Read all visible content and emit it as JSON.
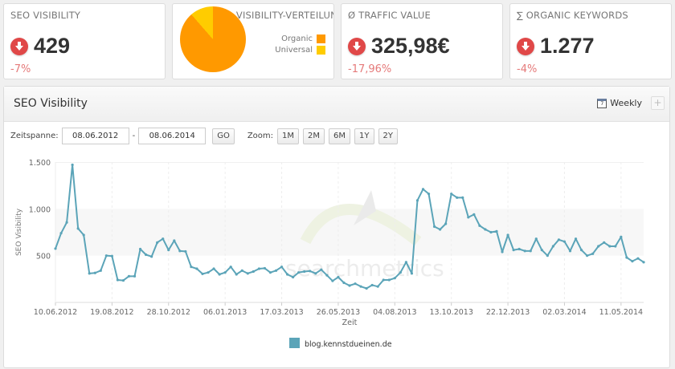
{
  "kpis": [
    {
      "title": "SEO VISIBILITY",
      "value": "429",
      "change": "-7%",
      "trend": "down"
    },
    {
      "title": "VISIBILITY-VERTEILUNG",
      "legend": [
        {
          "label": "Organic",
          "color": "#ff9900",
          "share": 0.885
        },
        {
          "label": "Universal",
          "color": "#ffcc00",
          "share": 0.115
        }
      ]
    },
    {
      "title": "Ø TRAFFIC VALUE",
      "value": "325,98€",
      "change": "-17,96%",
      "trend": "down"
    },
    {
      "title": "∑ ORGANIC KEYWORDS",
      "value": "1.277",
      "change": "-4%",
      "trend": "down"
    }
  ],
  "panel": {
    "title": "SEO Visibility",
    "interval_label": "Weekly",
    "calendar_day": "7",
    "add_label": "+"
  },
  "controls": {
    "timespan_label": "Zeitspanne:",
    "from_date": "08.06.2012",
    "separator": "-",
    "to_date": "08.06.2014",
    "go_label": "GO",
    "zoom_label": "Zoom:",
    "zoom_buttons": [
      "1M",
      "2M",
      "6M",
      "1Y",
      "2Y"
    ]
  },
  "colors": {
    "series": "#5ba4b8",
    "down": "#e04848",
    "change": "#e57a7a"
  },
  "watermark": "searchmetrics",
  "chart_data": {
    "type": "line",
    "title": "SEO Visibility",
    "xlabel": "Zeit",
    "ylabel": "SEO Visibility",
    "ylim": [
      0,
      1500
    ],
    "yticks": [
      "500",
      "1.000",
      "1.500"
    ],
    "xticks": [
      "10.06.2012",
      "19.08.2012",
      "28.10.2012",
      "06.01.2013",
      "17.03.2013",
      "26.05.2013",
      "04.08.2013",
      "13.10.2013",
      "22.12.2013",
      "02.03.2014",
      "11.05.2014"
    ],
    "legend": [
      "blog.kennstdueinen.de"
    ],
    "legend_position": "bottom",
    "grid": true,
    "series": [
      {
        "name": "blog.kennstdueinen.de",
        "values": [
          575,
          740,
          855,
          1470,
          790,
          720,
          310,
          315,
          340,
          500,
          495,
          240,
          235,
          280,
          280,
          570,
          510,
          490,
          640,
          680,
          560,
          660,
          550,
          545,
          380,
          360,
          305,
          320,
          360,
          300,
          320,
          380,
          300,
          340,
          310,
          330,
          360,
          365,
          320,
          340,
          380,
          300,
          270,
          320,
          330,
          335,
          310,
          350,
          290,
          230,
          270,
          210,
          180,
          200,
          170,
          150,
          185,
          170,
          240,
          240,
          260,
          320,
          430,
          310,
          1090,
          1210,
          1160,
          810,
          780,
          840,
          1160,
          1120,
          1120,
          910,
          940,
          820,
          780,
          750,
          760,
          540,
          720,
          560,
          570,
          550,
          550,
          680,
          560,
          500,
          600,
          670,
          650,
          550,
          680,
          560,
          500,
          520,
          600,
          640,
          600,
          600,
          700,
          480,
          440,
          470,
          430
        ]
      }
    ]
  }
}
